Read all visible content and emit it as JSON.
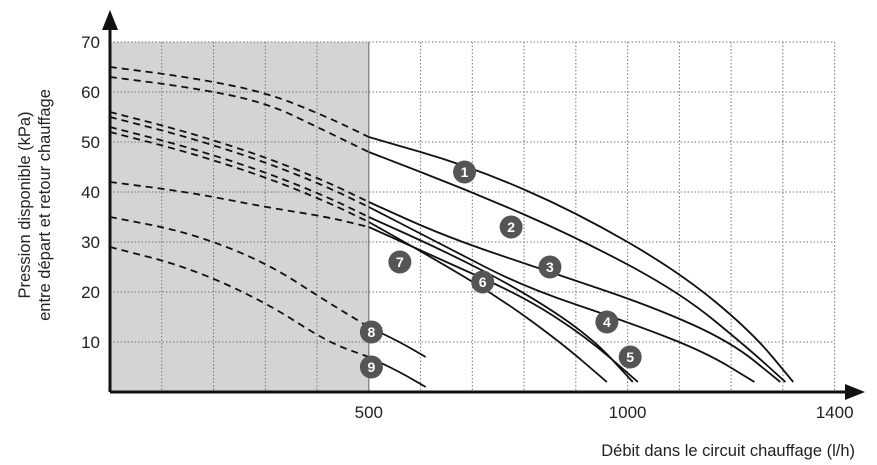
{
  "chart_data": {
    "type": "line",
    "title": "",
    "xlabel": "Débit dans le circuit chauffage (l/h)",
    "ylabel_lines": [
      "Pression disponible (kPa)",
      "entre départ et retour chauffage"
    ],
    "x_ticks": [
      500,
      1000,
      1400
    ],
    "y_ticks": [
      10,
      20,
      30,
      40,
      50,
      60,
      70
    ],
    "xlim": [
      0,
      1420
    ],
    "ylim": [
      0,
      70
    ],
    "grid": true,
    "shaded_region": {
      "x": [
        0,
        500
      ],
      "y": [
        0,
        70
      ],
      "color": "#d4d4d4",
      "meaning": "dashed-curve zone"
    },
    "series": [
      {
        "name": "1",
        "dashed": [
          [
            0,
            65
          ],
          [
            150,
            63
          ],
          [
            300,
            60
          ],
          [
            420,
            55
          ],
          [
            500,
            51
          ]
        ],
        "solid": [
          [
            500,
            51
          ],
          [
            700,
            45
          ],
          [
            900,
            36
          ],
          [
            1100,
            24
          ],
          [
            1240,
            12
          ],
          [
            1320,
            2
          ]
        ],
        "label_at": [
          685,
          44
        ]
      },
      {
        "name": "2",
        "dashed": [
          [
            0,
            63
          ],
          [
            150,
            61
          ],
          [
            300,
            58
          ],
          [
            420,
            52
          ],
          [
            500,
            48
          ]
        ],
        "solid": [
          [
            500,
            48
          ],
          [
            700,
            40
          ],
          [
            900,
            31
          ],
          [
            1100,
            20
          ],
          [
            1230,
            9
          ],
          [
            1305,
            2
          ]
        ],
        "label_at": [
          775,
          33
        ]
      },
      {
        "name": "3",
        "dashed": [
          [
            0,
            56
          ],
          [
            150,
            52
          ],
          [
            300,
            47
          ],
          [
            420,
            42
          ],
          [
            500,
            38
          ]
        ],
        "solid": [
          [
            500,
            38
          ],
          [
            650,
            31
          ],
          [
            850,
            24
          ],
          [
            1050,
            17
          ],
          [
            1200,
            10
          ],
          [
            1295,
            2
          ]
        ],
        "label_at": [
          850,
          25
        ]
      },
      {
        "name": "4",
        "dashed": [
          [
            0,
            55
          ],
          [
            150,
            51
          ],
          [
            300,
            46
          ],
          [
            420,
            41
          ],
          [
            500,
            37
          ]
        ],
        "solid": [
          [
            500,
            37
          ],
          [
            650,
            29
          ],
          [
            800,
            21
          ],
          [
            1000,
            14
          ],
          [
            1150,
            8
          ],
          [
            1245,
            2
          ]
        ],
        "label_at": [
          960,
          14
        ]
      },
      {
        "name": "5",
        "dashed": [
          [
            0,
            53
          ],
          [
            150,
            49
          ],
          [
            300,
            44
          ],
          [
            420,
            39
          ],
          [
            500,
            35
          ]
        ],
        "solid": [
          [
            500,
            35
          ],
          [
            650,
            28
          ],
          [
            800,
            20
          ],
          [
            930,
            11
          ],
          [
            1010,
            2
          ]
        ],
        "label_at": [
          1005,
          7
        ]
      },
      {
        "name": "6",
        "dashed": [
          [
            0,
            52
          ],
          [
            150,
            48
          ],
          [
            300,
            43
          ],
          [
            420,
            38
          ],
          [
            500,
            34
          ]
        ],
        "solid": [
          [
            500,
            34
          ],
          [
            620,
            27
          ],
          [
            750,
            19
          ],
          [
            870,
            10
          ],
          [
            960,
            2
          ]
        ],
        "label_at": [
          720,
          22
        ]
      },
      {
        "name": "7",
        "dashed": [
          [
            0,
            42
          ],
          [
            150,
            40
          ],
          [
            300,
            37
          ],
          [
            420,
            35
          ],
          [
            500,
            33
          ]
        ],
        "solid": [
          [
            500,
            33
          ],
          [
            650,
            26
          ],
          [
            800,
            19
          ],
          [
            920,
            11
          ],
          [
            1020,
            2
          ]
        ],
        "label_at": [
          560,
          26
        ]
      },
      {
        "name": "8",
        "dashed": [
          [
            0,
            35
          ],
          [
            150,
            32
          ],
          [
            300,
            26
          ],
          [
            420,
            18
          ],
          [
            500,
            13
          ]
        ],
        "solid": [
          [
            500,
            13
          ],
          [
            560,
            10
          ],
          [
            610,
            7
          ]
        ],
        "label_at": [
          505,
          12
        ]
      },
      {
        "name": "9",
        "dashed": [
          [
            0,
            29
          ],
          [
            150,
            25
          ],
          [
            300,
            18
          ],
          [
            420,
            10
          ],
          [
            500,
            7
          ]
        ],
        "solid": [
          [
            500,
            7
          ],
          [
            560,
            4
          ],
          [
            610,
            1
          ]
        ],
        "label_at": [
          505,
          5
        ]
      }
    ]
  },
  "style": {
    "line_color": "#111111",
    "badge_fill": "#555555",
    "grid_color": "#777777",
    "shade_color": "#d4d4d4"
  }
}
